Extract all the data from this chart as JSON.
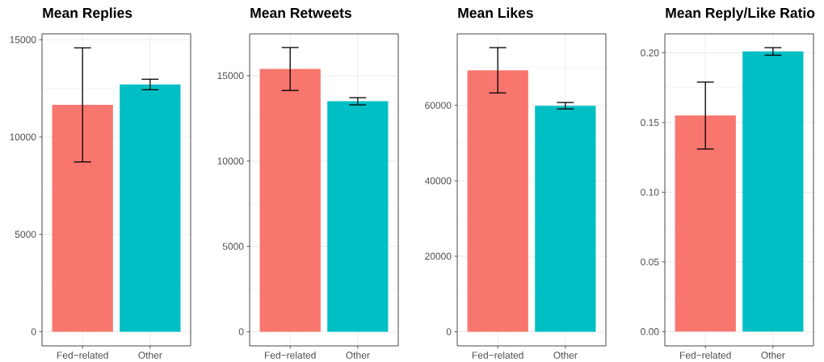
{
  "chart_data": [
    {
      "type": "bar",
      "title": "Mean Replies",
      "categories": [
        "Fed−related",
        "Other"
      ],
      "values": [
        11650,
        12700
      ],
      "colors": [
        "#F8766D",
        "#00BFC4"
      ],
      "errors": [
        2930,
        270
      ],
      "ylim": [
        -730,
        15300
      ],
      "yticks": [
        0,
        5000,
        10000,
        15000
      ],
      "grid": true
    },
    {
      "type": "bar",
      "title": "Mean Retweets",
      "categories": [
        "Fed−related",
        "Other"
      ],
      "values": [
        15390,
        13500
      ],
      "colors": [
        "#F8766D",
        "#00BFC4"
      ],
      "errors": [
        1260,
        210
      ],
      "ylim": [
        -830,
        17450
      ],
      "yticks": [
        0,
        5000,
        10000,
        15000
      ],
      "grid": true
    },
    {
      "type": "bar",
      "title": "Mean Likes",
      "categories": [
        "Fed−related",
        "Other"
      ],
      "values": [
        69300,
        59900
      ],
      "colors": [
        "#F8766D",
        "#00BFC4"
      ],
      "errors": [
        6000,
        850
      ],
      "ylim": [
        -3760,
        78950
      ],
      "yticks": [
        0,
        20000,
        40000,
        60000
      ],
      "grid": true
    },
    {
      "type": "bar",
      "title": "Mean Reply/Like Ratio",
      "categories": [
        "Fed−related",
        "Other"
      ],
      "values": [
        0.155,
        0.201
      ],
      "colors": [
        "#F8766D",
        "#00BFC4"
      ],
      "errors": [
        0.024,
        0.0027
      ],
      "ylim": [
        -0.0102,
        0.2136
      ],
      "yticks": [
        {
          "value": 0,
          "label": "0.00"
        },
        {
          "value": 0.05,
          "label": "0.05"
        },
        {
          "value": 0.1,
          "label": "0.10"
        },
        {
          "value": 0.15,
          "label": "0.15"
        },
        {
          "value": 0.2,
          "label": "0.20"
        }
      ],
      "grid": true
    }
  ]
}
